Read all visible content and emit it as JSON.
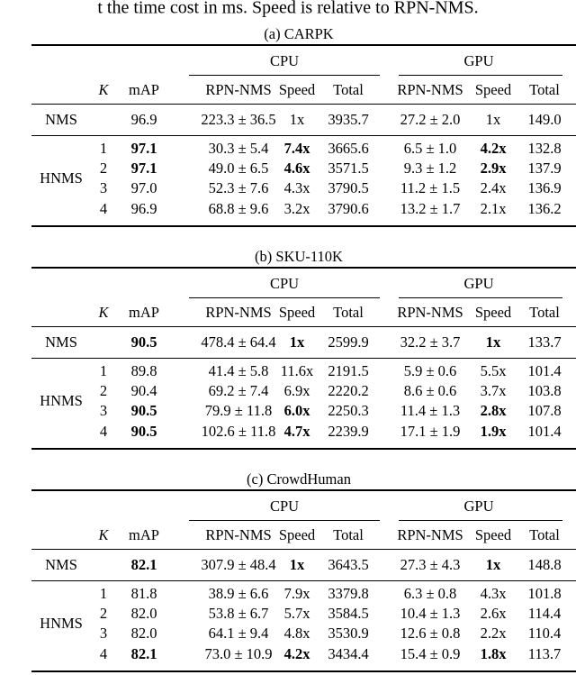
{
  "caption": "t the time cost in ms. Speed is relative to RPN-NMS.",
  "headers": {
    "cpu": "CPU",
    "gpu": "GPU",
    "k": "K",
    "columns": [
      "mAP",
      "RPN-NMS",
      "Speed",
      "Total",
      "RPN-NMS",
      "Speed",
      "Total"
    ]
  },
  "tables": [
    {
      "title": "(a) CARPK",
      "nms": {
        "label": "NMS",
        "cells": [
          "96.9",
          "223.3 ± 36.5",
          "1x",
          "3935.7",
          "27.2 ± 2.0",
          "1x",
          "149.0"
        ],
        "bold": []
      },
      "hnms": {
        "label": "HNMS",
        "rows": [
          {
            "k": "1",
            "cells": [
              "97.1",
              "30.3 ± 5.4",
              "7.4x",
              "3665.6",
              "6.5 ± 1.0",
              "4.2x",
              "132.8"
            ],
            "bold": [
              0,
              2,
              5
            ]
          },
          {
            "k": "2",
            "cells": [
              "97.1",
              "49.0 ± 6.5",
              "4.6x",
              "3571.5",
              "9.3 ± 1.2",
              "2.9x",
              "137.9"
            ],
            "bold": [
              0,
              2,
              5
            ]
          },
          {
            "k": "3",
            "cells": [
              "97.0",
              "52.3 ± 7.6",
              "4.3x",
              "3790.5",
              "11.2 ± 1.5",
              "2.4x",
              "136.9"
            ],
            "bold": []
          },
          {
            "k": "4",
            "cells": [
              "96.9",
              "68.8 ± 9.6",
              "3.2x",
              "3790.6",
              "13.2 ± 1.7",
              "2.1x",
              "136.2"
            ],
            "bold": []
          }
        ]
      }
    },
    {
      "title": "(b) SKU-110K",
      "nms": {
        "label": "NMS",
        "cells": [
          "90.5",
          "478.4 ± 64.4",
          "1x",
          "2599.9",
          "32.2 ± 3.7",
          "1x",
          "133.7"
        ],
        "bold": [
          0,
          2,
          5
        ]
      },
      "hnms": {
        "label": "HNMS",
        "rows": [
          {
            "k": "1",
            "cells": [
              "89.8",
              "41.4 ± 5.8",
              "11.6x",
              "2191.5",
              "5.9 ± 0.6",
              "5.5x",
              "101.4"
            ],
            "bold": []
          },
          {
            "k": "2",
            "cells": [
              "90.4",
              "69.2 ± 7.4",
              "6.9x",
              "2220.2",
              "8.6 ± 0.6",
              "3.7x",
              "103.8"
            ],
            "bold": []
          },
          {
            "k": "3",
            "cells": [
              "90.5",
              "79.9 ± 11.8",
              "6.0x",
              "2250.3",
              "11.4 ± 1.3",
              "2.8x",
              "107.8"
            ],
            "bold": [
              0,
              2,
              5
            ]
          },
          {
            "k": "4",
            "cells": [
              "90.5",
              "102.6 ± 11.8",
              "4.7x",
              "2239.9",
              "17.1 ± 1.9",
              "1.9x",
              "101.4"
            ],
            "bold": [
              0,
              2,
              5
            ]
          }
        ]
      }
    },
    {
      "title": "(c) CrowdHuman",
      "nms": {
        "label": "NMS",
        "cells": [
          "82.1",
          "307.9 ± 48.4",
          "1x",
          "3643.5",
          "27.3 ± 4.3",
          "1x",
          "148.8"
        ],
        "bold": [
          0,
          2,
          5
        ]
      },
      "hnms": {
        "label": "HNMS",
        "rows": [
          {
            "k": "1",
            "cells": [
              "81.8",
              "38.9 ± 6.6",
              "7.9x",
              "3379.8",
              "6.3 ± 0.8",
              "4.3x",
              "101.8"
            ],
            "bold": []
          },
          {
            "k": "2",
            "cells": [
              "82.0",
              "53.8 ± 6.7",
              "5.7x",
              "3584.5",
              "10.4 ± 1.3",
              "2.6x",
              "114.4"
            ],
            "bold": []
          },
          {
            "k": "3",
            "cells": [
              "82.0",
              "64.1 ± 9.4",
              "4.8x",
              "3530.9",
              "12.6 ± 0.8",
              "2.2x",
              "110.4"
            ],
            "bold": []
          },
          {
            "k": "4",
            "cells": [
              "82.1",
              "73.0 ± 10.9",
              "4.2x",
              "3434.4",
              "15.4 ± 0.9",
              "1.8x",
              "113.7"
            ],
            "bold": [
              0,
              2,
              5
            ]
          }
        ]
      }
    }
  ]
}
